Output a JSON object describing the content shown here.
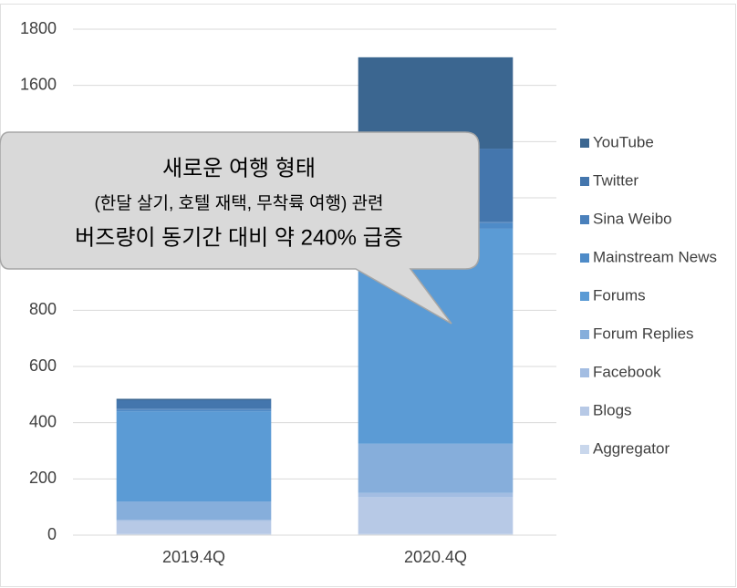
{
  "chart_data": {
    "type": "stacked_bar",
    "categories": [
      "2019.4Q",
      "2020.4Q"
    ],
    "series": [
      {
        "name": "Aggregator",
        "color": "#c9d7ec",
        "values": [
          5,
          5
        ]
      },
      {
        "name": "Blogs",
        "color": "#b7c9e6",
        "values": [
          45,
          130
        ]
      },
      {
        "name": "Facebook",
        "color": "#a3bde2",
        "values": [
          5,
          15
        ]
      },
      {
        "name": "Forum Replies",
        "color": "#86aedb",
        "values": [
          65,
          175
        ]
      },
      {
        "name": "Forums",
        "color": "#5b9bd5",
        "values": [
          320,
          765
        ]
      },
      {
        "name": "Mainstream News",
        "color": "#4e8bc8",
        "values": [
          5,
          20
        ]
      },
      {
        "name": "Sina Weibo",
        "color": "#4a80bb",
        "values": [
          5,
          5
        ]
      },
      {
        "name": "Twitter",
        "color": "#4476ad",
        "values": [
          30,
          260
        ]
      },
      {
        "name": "YouTube",
        "color": "#3b6690",
        "values": [
          5,
          325
        ]
      }
    ],
    "ylim": [
      0,
      1800
    ],
    "yticks": [
      0,
      200,
      400,
      600,
      800,
      1000,
      1200,
      1400,
      1600,
      1800
    ],
    "grid": true,
    "annotation": [
      "새로운 여행 형태",
      "(한달 살기, 호텔 재택, 무착륙 여행) 관련",
      "버즈량이 동기간 대비 약 240% 급증"
    ]
  }
}
